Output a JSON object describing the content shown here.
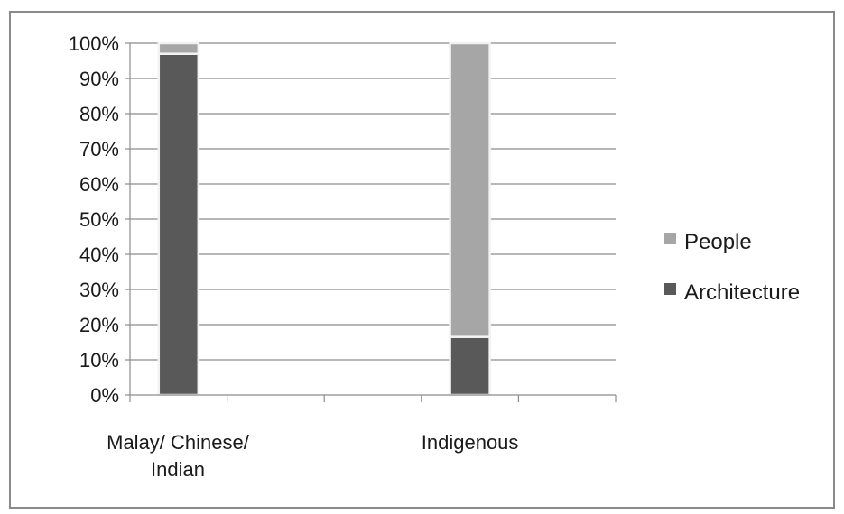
{
  "chart_data": {
    "type": "bar",
    "stacked": true,
    "percent": true,
    "categories": [
      [
        "Malay/ Chinese/",
        "Indian"
      ],
      [
        "Indigenous"
      ]
    ],
    "series": [
      {
        "name": "Architecture",
        "values": [
          97,
          16.5
        ],
        "color": "#595959"
      },
      {
        "name": "People",
        "values": [
          3,
          83.5
        ],
        "color": "#a6a6a6"
      }
    ],
    "ylim": [
      0,
      100
    ],
    "yticks": [
      "0%",
      "10%",
      "20%",
      "30%",
      "40%",
      "50%",
      "60%",
      "70%",
      "80%",
      "90%",
      "100%"
    ],
    "grid": true,
    "legend": {
      "placement": "right",
      "order": [
        "People",
        "Architecture"
      ]
    }
  }
}
